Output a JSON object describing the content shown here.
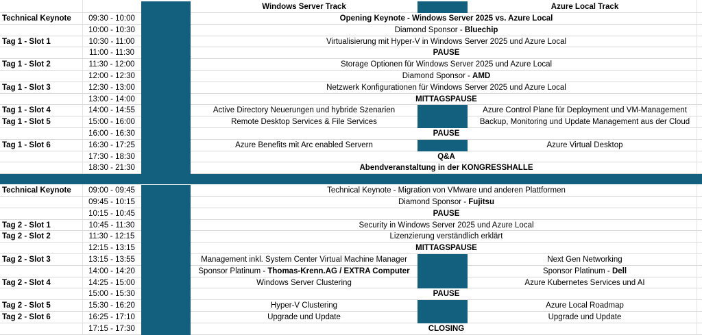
{
  "header": {
    "windows_track": "Windows Server Track",
    "azure_track": "Azure Local Track"
  },
  "rows": [
    {
      "label": "Technical Keynote",
      "time": "09:30 - 10:00",
      "type": "wide",
      "text": "Opening Keynote - Windows Server 2025 vs. Azure Local",
      "bold": true
    },
    {
      "label": "",
      "time": "10:00 - 10:30",
      "type": "wide",
      "text": "Diamond Sponsor - ",
      "strong": "Bluechip"
    },
    {
      "label": "Tag 1 - Slot 1",
      "time": "10:30 - 11:00",
      "type": "wide",
      "text": "Virtualisierung mit Hyper-V in Windows Server 2025 und Azure Local"
    },
    {
      "label": "",
      "time": "11:00 - 11:30",
      "type": "wide",
      "text": "PAUSE",
      "bold": true
    },
    {
      "label": "Tag 1 - Slot 2",
      "time": "11:30 - 12:00",
      "type": "wide",
      "text": "Storage Optionen für Windows Server 2025 und Azure Local"
    },
    {
      "label": "",
      "time": "12:00 - 12:30",
      "type": "wide",
      "text": "Diamond Sponsor - ",
      "strong": "AMD"
    },
    {
      "label": "Tag 1 - Slot 3",
      "time": "12:30 - 13:00",
      "type": "wide",
      "text": "Netzwerk Konfigurationen für Windows Server 2025 und Azure Local"
    },
    {
      "label": "",
      "time": "13:00 - 14:00",
      "type": "wide",
      "text": "MITTAGSPAUSE",
      "bold": true
    },
    {
      "label": "Tag 1 - Slot 4",
      "time": "14:00 - 14:55",
      "type": "split",
      "left": "Active Directory Neuerungen und hybride Szenarien",
      "right": "Azure Control Plane für Deployment und VM-Management"
    },
    {
      "label": "Tag 1 - Slot 5",
      "time": "15:00 - 16:00",
      "type": "split",
      "left": "Remote Desktop Services & File Services",
      "right": "Backup, Monitoring und Update Management aus der Cloud"
    },
    {
      "label": "",
      "time": "16:00 - 16:30",
      "type": "wide",
      "text": "PAUSE",
      "bold": true
    },
    {
      "label": "Tag 1 - Slot 6",
      "time": "16:30 - 17:25",
      "type": "split",
      "left": "Azure  Benefits mit  Arc enabled Servern",
      "right": "Azure Virtual Desktop"
    },
    {
      "label": "",
      "time": "17:30 - 18:30",
      "type": "wide",
      "text": "Q&A",
      "bold": true
    },
    {
      "label": "",
      "time": "18:30 - 21:30",
      "type": "wide",
      "text": "Abendveranstaltung in der KONGRESSHALLE",
      "bold": true
    },
    {
      "type": "separator"
    },
    {
      "label": "Technical Keynote",
      "time": "09:00 - 09:45",
      "type": "wide",
      "text": "Technical Keynote - Migration von VMware und anderen Plattformen"
    },
    {
      "label": "",
      "time": "09:45 - 10:15",
      "type": "wide",
      "text": "Diamond Sponsor - ",
      "strong": "Fujitsu"
    },
    {
      "label": "",
      "time": "10:15 - 10:45",
      "type": "wide",
      "text": "PAUSE",
      "bold": true
    },
    {
      "label": "Tag 2 - Slot 1",
      "time": "10:45 - 11:30",
      "type": "wide",
      "text": "Security in Windows Server 2025 und Azure Local"
    },
    {
      "label": "Tag 2 - Slot 2",
      "time": "11:30 - 12:15",
      "type": "wide",
      "text": "Lizenzierung verständlich erklärt"
    },
    {
      "label": "",
      "time": "12:15 - 13:15",
      "type": "wide",
      "text": "MITTAGSPAUSE",
      "bold": true
    },
    {
      "label": "Tag 2 - Slot 3",
      "time": "13:15 - 13:55",
      "type": "split",
      "left": "Management inkl. System Center Virtual Machine Manager",
      "right": "Next Gen Networking"
    },
    {
      "label": "",
      "time": "14:00 - 14:20",
      "type": "split",
      "left": "Sponsor Platinum -  ",
      "left_strong": "Thomas-Krenn.AG / EXTRA Computer",
      "right": "Sponsor Platinum - ",
      "right_strong": "Dell"
    },
    {
      "label": "Tag 2 - Slot 4",
      "time": "14:25 - 15:00",
      "type": "split",
      "left": "Windows Server Clustering",
      "right": "Azure Kubernetes Services und AI"
    },
    {
      "label": "",
      "time": "15:00 - 15:30",
      "type": "wide",
      "text": "PAUSE",
      "bold": true
    },
    {
      "label": "Tag 2 - Slot 5",
      "time": "15:30 - 16:20",
      "type": "split",
      "left": "Hyper-V Clustering",
      "right": "Azure Local Roadmap"
    },
    {
      "label": "Tag 2 - Slot 6",
      "time": "16:25 - 17:10",
      "type": "split",
      "left": "Upgrade und Update",
      "right": "Upgrade und Update"
    },
    {
      "label": "",
      "time": "17:15 - 17:30",
      "type": "wide",
      "text": "CLOSING",
      "bold": true
    }
  ]
}
